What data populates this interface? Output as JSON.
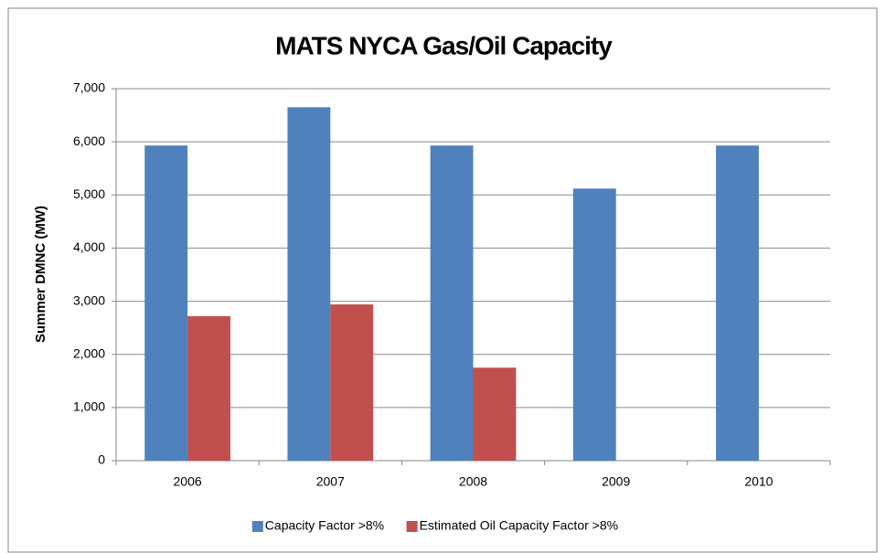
{
  "chart_data": {
    "type": "bar",
    "title": "MATS NYCA Gas/Oil Capacity",
    "y_label": "Summer DMNC (MW)",
    "categories": [
      "2006",
      "2007",
      "2008",
      "2009",
      "2010"
    ],
    "series": [
      {
        "name": "Capacity Factor >8%",
        "color": "#4f81bd",
        "values": [
          5930,
          6650,
          5930,
          5120,
          5930
        ]
      },
      {
        "name": "Estimated Oil Capacity Factor >8%",
        "color": "#c0504d",
        "values": [
          2720,
          2940,
          1750,
          null,
          null
        ]
      }
    ],
    "ylim": [
      0,
      7000
    ],
    "yticks": [
      0,
      {
        "value": 1000,
        "label": "1,000"
      },
      {
        "value": 2000,
        "label": "2,000"
      },
      {
        "value": 3000,
        "label": "3,000"
      },
      {
        "value": 4000,
        "label": "4,000"
      },
      {
        "value": 5000,
        "label": "5,000"
      },
      {
        "value": 6000,
        "label": "6,000"
      },
      {
        "value": 7000,
        "label": "7,000"
      }
    ],
    "grid": true,
    "legend": "bottom"
  }
}
